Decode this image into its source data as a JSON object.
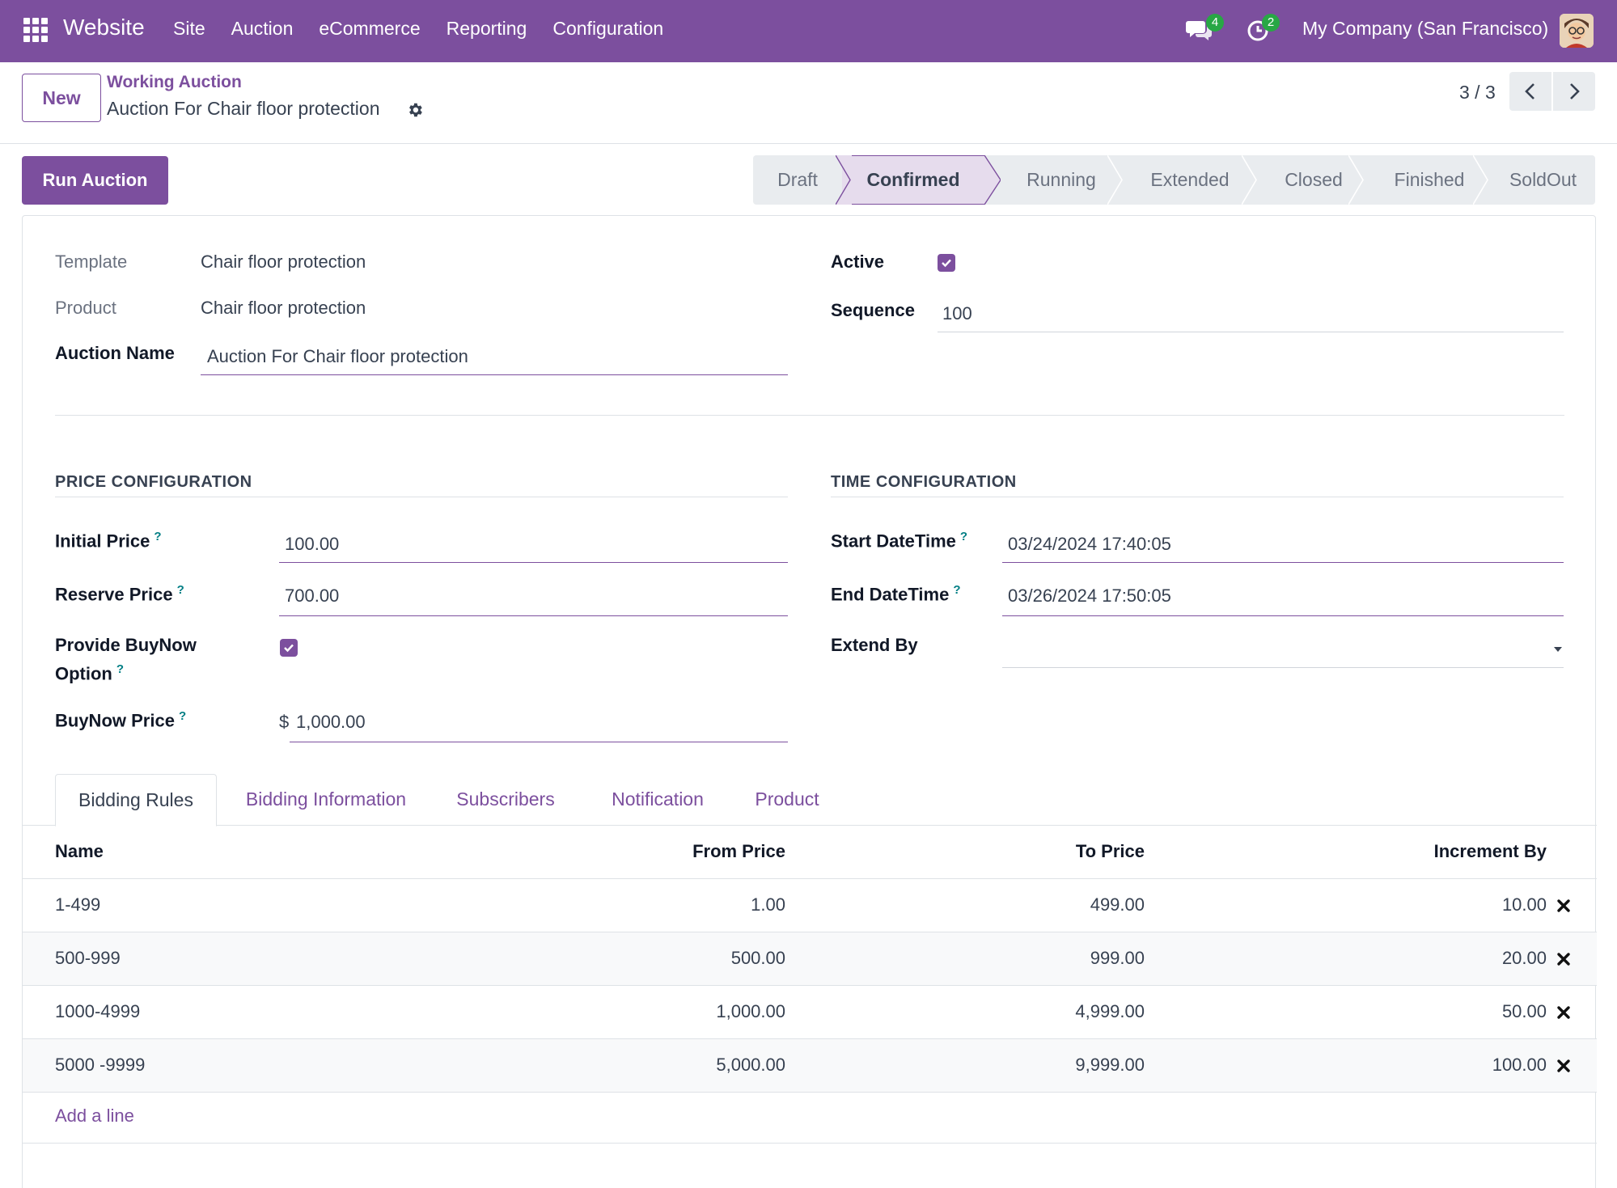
{
  "navbar": {
    "brand": "Website",
    "menu": [
      "Site",
      "Auction",
      "eCommerce",
      "Reporting",
      "Configuration"
    ],
    "chat_count": "4",
    "activity_count": "2",
    "company": "My Company (San Francisco)",
    "accent": "#7c4f9e"
  },
  "control": {
    "new_label": "New",
    "breadcrumb_parent": "Working Auction",
    "breadcrumb_current": "Auction For Chair floor protection",
    "pager": "3 / 3"
  },
  "actions": {
    "run_label": "Run Auction"
  },
  "status": {
    "steps": [
      "Draft",
      "Confirmed",
      "Running",
      "Extended",
      "Closed",
      "Finished",
      "SoldOut"
    ],
    "current": "Confirmed"
  },
  "form": {
    "template_label": "Template",
    "template_value": "Chair floor protection",
    "product_label": "Product",
    "product_value": "Chair floor protection",
    "auction_name_label": "Auction Name",
    "auction_name_value": "Auction For Chair floor protection",
    "active_label": "Active",
    "active_checked": true,
    "sequence_label": "Sequence",
    "sequence_value": "100"
  },
  "price_config": {
    "title": "PRICE CONFIGURATION",
    "initial_price_label": "Initial Price",
    "initial_price_value": "100.00",
    "reserve_price_label": "Reserve Price",
    "reserve_price_value": "700.00",
    "buynow_option_label_1": "Provide BuyNow",
    "buynow_option_label_2": "Option",
    "buynow_option_checked": true,
    "buynow_price_label": "BuyNow Price",
    "buynow_currency": "$",
    "buynow_price_value": "1,000.00"
  },
  "time_config": {
    "title": "TIME CONFIGURATION",
    "start_label": "Start DateTime",
    "start_value": "03/24/2024 17:40:05",
    "end_label": "End DateTime",
    "end_value": "03/26/2024 17:50:05",
    "extend_label": "Extend By",
    "extend_value": ""
  },
  "help_mark": "?",
  "tabs": [
    "Bidding Rules",
    "Bidding Information",
    "Subscribers",
    "Notification",
    "Product"
  ],
  "table": {
    "columns": [
      "Name",
      "From Price",
      "To Price",
      "Increment By"
    ],
    "rows": [
      {
        "name": "1-499",
        "from": "1.00",
        "to": "499.00",
        "increment": "10.00"
      },
      {
        "name": "500-999",
        "from": "500.00",
        "to": "999.00",
        "increment": "20.00"
      },
      {
        "name": "1000-4999",
        "from": "1,000.00",
        "to": "4,999.00",
        "increment": "50.00"
      },
      {
        "name": "5000 -9999",
        "from": "5,000.00",
        "to": "9,999.00",
        "increment": "100.00"
      }
    ],
    "add_line": "Add a line"
  }
}
